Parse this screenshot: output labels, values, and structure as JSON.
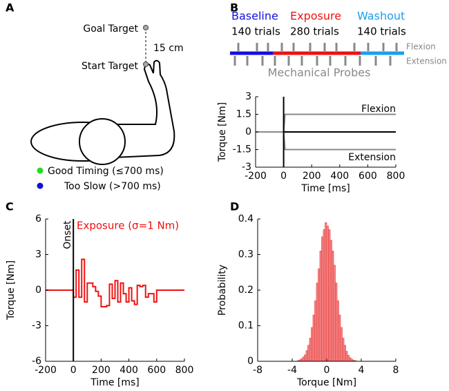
{
  "panel_a": {
    "label": "A",
    "goal": "Goal Target",
    "start": "Start Target",
    "distance": "15 cm",
    "legend": [
      {
        "text": "Good Timing (≤700 ms)",
        "color": "#22dd22"
      },
      {
        "text": "Too Slow (>700 ms)",
        "color": "#1010dd"
      }
    ]
  },
  "panel_b_schedule": {
    "label": "B",
    "phases": [
      {
        "name": "Baseline",
        "trials": "140 trials",
        "color": "#1010e0"
      },
      {
        "name": "Exposure",
        "trials": "280 trials",
        "color": "#ee1111"
      },
      {
        "name": "Washout",
        "trials": "140 trials",
        "color": "#1a9ef0"
      }
    ],
    "probe_rows": [
      "Flexion",
      "Extension"
    ],
    "probes": "Mechanical Probes"
  },
  "chart_data": [
    {
      "type": "line",
      "xlabel": "Time [ms]",
      "ylabel": "Torque [Nm]",
      "xlim": [
        -200,
        800
      ],
      "xticks": [
        -200,
        0,
        200,
        400,
        600,
        800
      ],
      "ylim": [
        -3,
        3
      ],
      "yticks": [
        -3,
        -1.5,
        0,
        1.5,
        3
      ],
      "vlines": [
        0
      ],
      "series": [
        {
          "name": "Flexion",
          "color": "#888888",
          "x": [
            -200,
            0,
            10,
            800
          ],
          "values": [
            0,
            0,
            1.5,
            1.5
          ]
        },
        {
          "name": "Extension",
          "color": "#888888",
          "x": [
            -200,
            0,
            10,
            800
          ],
          "values": [
            0,
            0,
            -1.5,
            -1.5
          ]
        },
        {
          "color": "#000000",
          "x": [
            0,
            800
          ],
          "values": [
            0,
            0
          ]
        }
      ]
    },
    {
      "type": "step",
      "panel": "C",
      "xlabel": "Time [ms]",
      "ylabel": "Torque [Nm]",
      "xlim": [
        -200,
        800
      ],
      "xticks": [
        -200,
        0,
        200,
        400,
        600,
        800
      ],
      "ylim": [
        -6,
        6
      ],
      "yticks": [
        -6,
        -3,
        0,
        3,
        6
      ],
      "vlines": [
        0
      ],
      "annotations": [
        "Exposure (σ=1 Nm)",
        "Onset"
      ],
      "series": [
        {
          "color": "#ee1111",
          "x": [
            -200,
            0,
            20,
            40,
            60,
            80,
            100,
            120,
            140,
            160,
            180,
            200,
            220,
            240,
            260,
            280,
            300,
            320,
            340,
            360,
            380,
            400,
            420,
            440,
            460,
            480,
            500,
            520,
            540,
            560,
            580,
            600
          ],
          "values": [
            0,
            -0.6,
            1.7,
            -0.6,
            2.6,
            -1.0,
            0.6,
            0.6,
            0.3,
            -0.1,
            -0.5,
            -1.4,
            -1.4,
            -1.3,
            0.5,
            -0.7,
            0.8,
            -1.0,
            0.6,
            -0.3,
            -1.0,
            0.2,
            -0.9,
            -1.2,
            0.4,
            0.3,
            0.4,
            -0.6,
            -0.3,
            -0.3,
            -1.0,
            0
          ]
        }
      ]
    },
    {
      "type": "histogram",
      "panel": "D",
      "xlabel": "Torque [Nm]",
      "ylabel": "Probability",
      "xlim": [
        -8,
        8
      ],
      "xticks": [
        -8,
        -4,
        0,
        4,
        8
      ],
      "ylim": [
        0,
        0.4
      ],
      "yticks": [
        0,
        0.1,
        0.2,
        0.3,
        0.4
      ],
      "color": "#f48a8a",
      "edgecolor": "#e63030",
      "bins": [
        -3.4,
        -3.2,
        -3.0,
        -2.8,
        -2.6,
        -2.4,
        -2.2,
        -2.0,
        -1.8,
        -1.6,
        -1.4,
        -1.2,
        -1.0,
        -0.8,
        -0.6,
        -0.4,
        -0.2,
        0,
        0.2,
        0.4,
        0.6,
        0.8,
        1.0,
        1.2,
        1.4,
        1.6,
        1.8,
        2.0,
        2.2,
        2.4,
        2.6,
        2.8,
        3.0,
        3.2,
        3.4
      ],
      "values": [
        0.002,
        0.004,
        0.007,
        0.012,
        0.018,
        0.03,
        0.045,
        0.065,
        0.095,
        0.13,
        0.17,
        0.22,
        0.26,
        0.31,
        0.35,
        0.37,
        0.39,
        0.38,
        0.37,
        0.34,
        0.31,
        0.27,
        0.22,
        0.17,
        0.13,
        0.095,
        0.065,
        0.045,
        0.028,
        0.017,
        0.01,
        0.006,
        0.003,
        0.002
      ]
    }
  ]
}
